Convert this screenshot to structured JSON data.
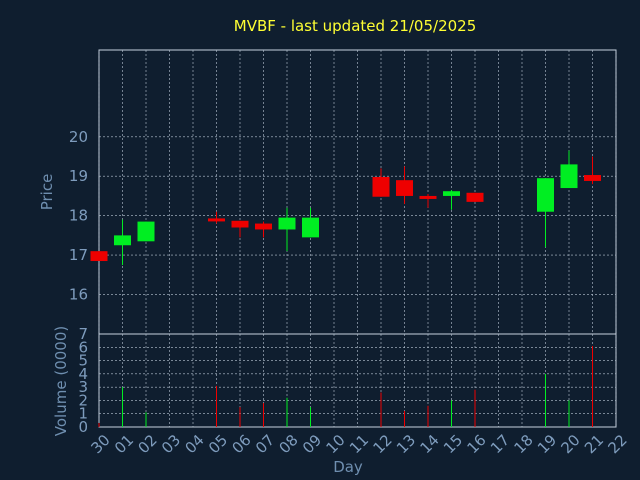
{
  "chart_data": {
    "type": "candlestick",
    "title": "MVBF - last updated 21/05/2025",
    "xlabel": "Day",
    "ylabel": "Price",
    "volume_label": "Volume (0000)",
    "x_ticks": [
      "30",
      "01",
      "02",
      "03",
      "04",
      "05",
      "06",
      "07",
      "08",
      "09",
      "10",
      "11",
      "12",
      "13",
      "14",
      "15",
      "16",
      "17",
      "18",
      "19",
      "20",
      "21",
      "22"
    ],
    "price_ylim": [
      15,
      22.2
    ],
    "price_ticks": [
      16,
      17,
      18,
      19,
      20
    ],
    "volume_ylim": [
      0,
      7
    ],
    "volume_ticks": [
      0,
      1,
      2,
      3,
      4,
      5,
      6,
      7
    ],
    "grid": true,
    "up_color": "#00ee22",
    "down_color": "#ee0000",
    "candles": [
      {
        "day": "30",
        "open": 17.1,
        "close": 16.85,
        "high": 17.1,
        "low": 16.85,
        "volume": 0.3
      },
      {
        "day": "01",
        "open": 17.25,
        "close": 17.5,
        "high": 17.9,
        "low": 16.75,
        "volume": 3.0
      },
      {
        "day": "02",
        "open": 17.35,
        "close": 17.85,
        "high": 17.85,
        "low": 17.35,
        "volume": 1.1
      },
      {
        "day": "05",
        "open": 17.93,
        "close": 17.87,
        "high": 18.1,
        "low": 17.8,
        "volume": 3.1
      },
      {
        "day": "06",
        "open": 17.87,
        "close": 17.7,
        "high": 17.87,
        "low": 17.45,
        "volume": 1.5
      },
      {
        "day": "07",
        "open": 17.8,
        "close": 17.65,
        "high": 17.85,
        "low": 17.45,
        "volume": 1.8
      },
      {
        "day": "08",
        "open": 17.65,
        "close": 17.95,
        "high": 18.2,
        "low": 17.1,
        "volume": 2.2
      },
      {
        "day": "09",
        "open": 17.45,
        "close": 17.95,
        "high": 18.2,
        "low": 17.45,
        "volume": 1.5
      },
      {
        "day": "12",
        "open": 18.98,
        "close": 18.48,
        "high": 19.2,
        "low": 18.48,
        "volume": 2.6
      },
      {
        "day": "13",
        "open": 18.9,
        "close": 18.5,
        "high": 19.25,
        "low": 18.3,
        "volume": 1.2
      },
      {
        "day": "14",
        "open": 18.5,
        "close": 18.45,
        "high": 18.55,
        "low": 18.2,
        "volume": 1.6
      },
      {
        "day": "15",
        "open": 18.5,
        "close": 18.62,
        "high": 18.65,
        "low": 18.15,
        "volume": 2.0
      },
      {
        "day": "16",
        "open": 18.58,
        "close": 18.35,
        "high": 18.58,
        "low": 18.35,
        "volume": 2.8
      },
      {
        "day": "19",
        "open": 18.1,
        "close": 18.95,
        "high": 18.95,
        "low": 17.2,
        "volume": 4.0
      },
      {
        "day": "20",
        "open": 18.7,
        "close": 19.3,
        "high": 19.65,
        "low": 18.7,
        "volume": 2.0
      },
      {
        "day": "21",
        "open": 19.03,
        "close": 18.88,
        "high": 19.5,
        "low": 18.8,
        "volume": 6.1
      }
    ]
  }
}
